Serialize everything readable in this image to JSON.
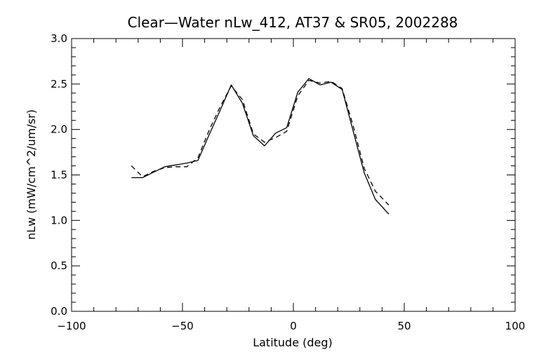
{
  "chart_data": {
    "type": "line",
    "title": "Clear—Water nLw_412, AT37 & SR05, 2002288",
    "xlabel": "Latitude (deg)",
    "ylabel": "nLw (mW/cm^2/um/sr)",
    "xlim": [
      -100,
      100
    ],
    "ylim": [
      0.0,
      3.0
    ],
    "xticks": [
      -100,
      -50,
      0,
      50,
      100
    ],
    "xtick_labels": [
      "−100",
      "−50",
      "0",
      "50",
      "100"
    ],
    "yticks": [
      0.0,
      0.5,
      1.0,
      1.5,
      2.0,
      2.5,
      3.0
    ],
    "ytick_labels": [
      "0.0",
      "0.5",
      "1.0",
      "1.5",
      "2.0",
      "2.5",
      "3.0"
    ],
    "grid": false,
    "legend": "none",
    "series": [
      {
        "style": "solid",
        "color": "#000000",
        "x": [
          -73,
          -68,
          -63,
          -58,
          -53,
          -48,
          -43,
          -38,
          -33,
          -28,
          -23,
          -18,
          -13,
          -8,
          -3,
          2,
          7,
          12,
          17,
          22,
          27,
          32,
          37,
          43
        ],
        "y": [
          1.47,
          1.47,
          1.53,
          1.59,
          1.61,
          1.63,
          1.66,
          1.94,
          2.21,
          2.49,
          2.29,
          1.93,
          1.82,
          1.96,
          2.02,
          2.41,
          2.56,
          2.49,
          2.52,
          2.44,
          1.98,
          1.52,
          1.23,
          1.07
        ]
      },
      {
        "style": "dashed",
        "color": "#000000",
        "x": [
          -73,
          -68,
          -63,
          -58,
          -53,
          -48,
          -43,
          -38,
          -33,
          -28,
          -23,
          -18,
          -13,
          -8,
          -3,
          2,
          7,
          12,
          17,
          22,
          27,
          32,
          37,
          43
        ],
        "y": [
          1.6,
          1.48,
          1.54,
          1.58,
          1.59,
          1.59,
          1.69,
          1.99,
          2.25,
          2.48,
          2.33,
          1.95,
          1.86,
          1.91,
          1.98,
          2.37,
          2.54,
          2.51,
          2.53,
          2.45,
          2.04,
          1.57,
          1.32,
          1.17
        ]
      }
    ]
  }
}
